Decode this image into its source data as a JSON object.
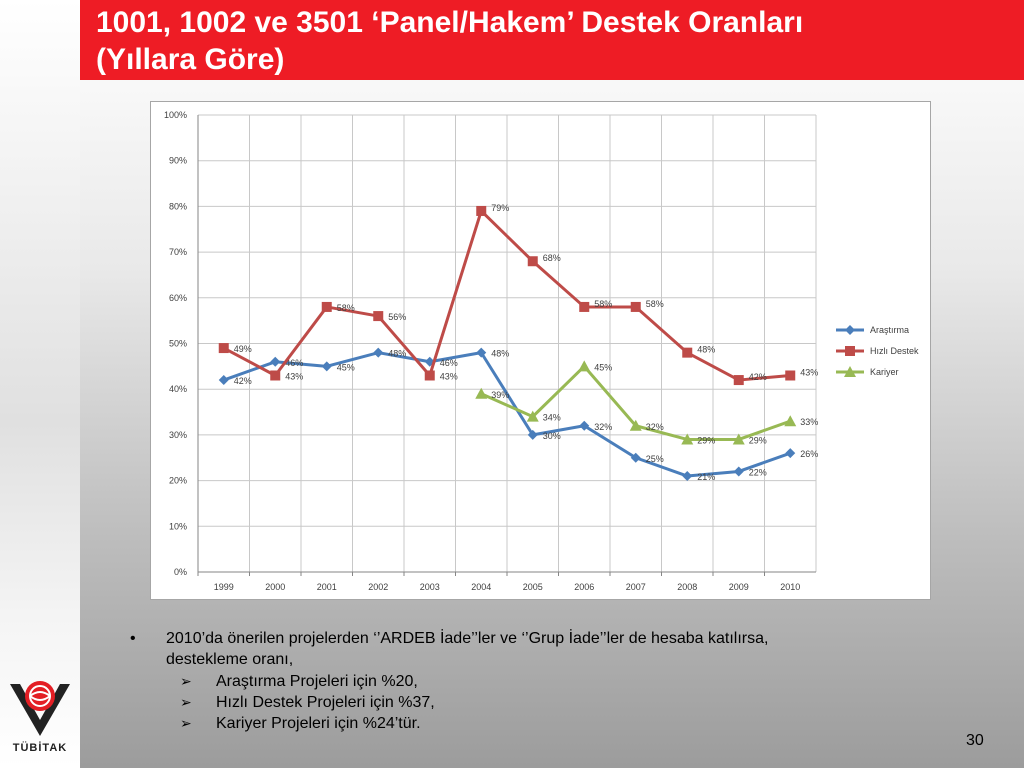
{
  "slide": {
    "title_line1": "1001, 1002 ve 3501 ‘Panel/Hakem’ Destek Oranları",
    "title_line2": "(Yıllara Göre)",
    "page_number": "30",
    "bullet_mark": "•",
    "sub_mark": "➢",
    "bullet_text_line1": "2010’da önerilen projelerden ‘’ARDEB İade’’ler ve ‘’Grup İade’’ler de hesaba katılırsa,",
    "bullet_text_line2": "destekleme oranı,",
    "sub_items": [
      "Araştırma Projeleri için %20,",
      "Hızlı Destek Projeleri için %37,",
      "Kariyer Projeleri için %24’tür."
    ],
    "logo_text": "TÜBİTAK"
  },
  "chart_data": {
    "type": "line",
    "categories": [
      "1999",
      "2000",
      "2001",
      "2002",
      "2003",
      "2004",
      "2005",
      "2006",
      "2007",
      "2008",
      "2009",
      "2010"
    ],
    "ylim": [
      0,
      100
    ],
    "yticks": [
      "0%",
      "10%",
      "20%",
      "30%",
      "40%",
      "50%",
      "60%",
      "70%",
      "80%",
      "90%",
      "100%"
    ],
    "grid": true,
    "legend_position": "right",
    "series": [
      {
        "name": "Araştırma",
        "color": "#4a7ebb",
        "marker": "diamond",
        "values": [
          42,
          46,
          45,
          48,
          46,
          48,
          30,
          32,
          25,
          21,
          22,
          26
        ],
        "labels": [
          "42%",
          "46%",
          "45%",
          "48%",
          "46%",
          "48%",
          "30%",
          "32%",
          "25%",
          "21%",
          "22%",
          "26%"
        ]
      },
      {
        "name": "Hızlı Destek",
        "color": "#be4b48",
        "marker": "square",
        "values": [
          49,
          43,
          58,
          56,
          43,
          79,
          68,
          58,
          58,
          48,
          42,
          43
        ],
        "labels": [
          "49%",
          "43%",
          "58%",
          "56%",
          "43%",
          "79%",
          "68%",
          "58%",
          "58%",
          "48%",
          "42%",
          "43%"
        ]
      },
      {
        "name": "Kariyer",
        "color": "#98b954",
        "marker": "triangle",
        "values": [
          null,
          null,
          null,
          null,
          null,
          39,
          34,
          45,
          32,
          29,
          29,
          33
        ],
        "labels": [
          null,
          null,
          null,
          null,
          null,
          "39%",
          "34%",
          "45%",
          "32%",
          "29%",
          "29%",
          "33%"
        ]
      }
    ]
  }
}
